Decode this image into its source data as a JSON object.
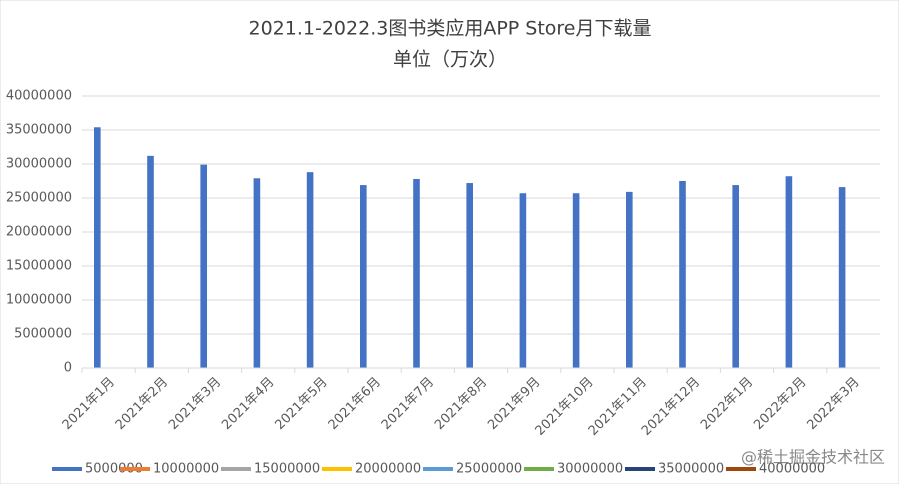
{
  "chart_data": {
    "type": "bar",
    "title": "2021.1-2022.3图书类应用APP Store月下载量",
    "subtitle": "单位（万次）",
    "categories": [
      "2021年1月",
      "2021年2月",
      "2021年3月",
      "2021年4月",
      "2021年5月",
      "2021年6月",
      "2021年7月",
      "2021年8月",
      "2021年9月",
      "2021年10月",
      "2021年11月",
      "2021年12月",
      "2022年1月",
      "2022年2月",
      "2022年3月"
    ],
    "series": [
      {
        "name": "5000000",
        "color": "#4472c4",
        "values": [
          35400000,
          31200000,
          29900000,
          27900000,
          28800000,
          26900000,
          27800000,
          27200000,
          25700000,
          25700000,
          25900000,
          27500000,
          26900000,
          28200000,
          26600000
        ]
      },
      {
        "name": "10000000",
        "color": "#ed7d31",
        "values": [
          null,
          null,
          null,
          null,
          null,
          null,
          null,
          null,
          null,
          null,
          null,
          null,
          null,
          null,
          null
        ]
      },
      {
        "name": "15000000",
        "color": "#a5a5a5",
        "values": [
          null,
          null,
          null,
          null,
          null,
          null,
          null,
          null,
          null,
          null,
          null,
          null,
          null,
          null,
          null
        ]
      },
      {
        "name": "20000000",
        "color": "#ffc000",
        "values": [
          null,
          null,
          null,
          null,
          null,
          null,
          null,
          null,
          null,
          null,
          null,
          null,
          null,
          null,
          null
        ]
      },
      {
        "name": "25000000",
        "color": "#5b9bd5",
        "values": [
          null,
          null,
          null,
          null,
          null,
          null,
          null,
          null,
          null,
          null,
          null,
          null,
          null,
          null,
          null
        ]
      },
      {
        "name": "30000000",
        "color": "#70ad47",
        "values": [
          null,
          null,
          null,
          null,
          null,
          null,
          null,
          null,
          null,
          null,
          null,
          null,
          null,
          null,
          null
        ]
      },
      {
        "name": "35000000",
        "color": "#264478",
        "values": [
          null,
          null,
          null,
          null,
          null,
          null,
          null,
          null,
          null,
          null,
          null,
          null,
          null,
          null,
          null
        ]
      },
      {
        "name": "40000000",
        "color": "#9e480e",
        "values": [
          null,
          null,
          null,
          null,
          null,
          null,
          null,
          null,
          null,
          null,
          null,
          null,
          null,
          null,
          null
        ]
      }
    ],
    "ylim": [
      0,
      40000000
    ],
    "yticks": [
      0,
      5000000,
      10000000,
      15000000,
      20000000,
      25000000,
      30000000,
      35000000,
      40000000
    ],
    "grid": true,
    "legend": "bottom",
    "watermark": "@稀土掘金技术社区"
  }
}
